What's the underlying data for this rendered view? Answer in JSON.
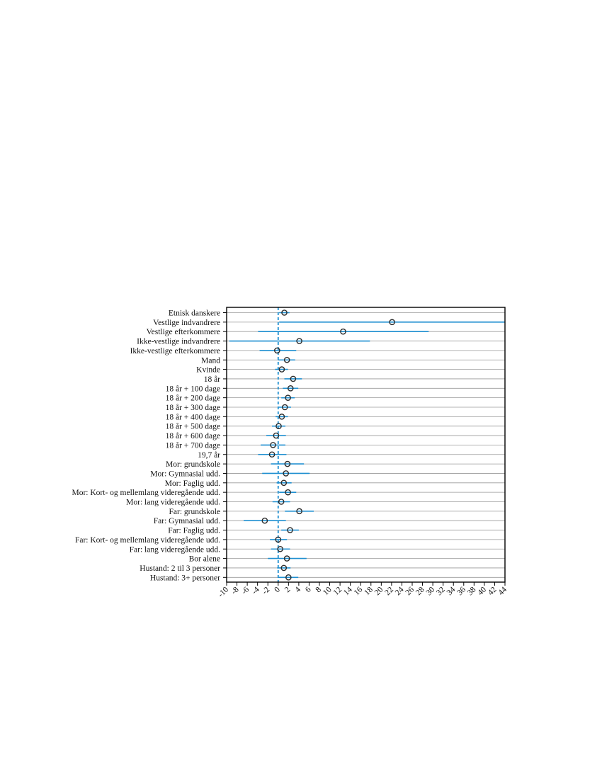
{
  "chart_data": {
    "type": "scatter",
    "variant": "coefficient-plot",
    "title": "",
    "xlabel": "",
    "ylabel": "",
    "xlim": [
      -10,
      44
    ],
    "x_ticks": [
      -10,
      -8,
      -6,
      -4,
      -2,
      0,
      2,
      4,
      6,
      8,
      10,
      12,
      14,
      16,
      18,
      20,
      22,
      24,
      26,
      28,
      30,
      32,
      34,
      36,
      38,
      40,
      42,
      44
    ],
    "reference_line": 0,
    "grid": "horizontal",
    "legend": "none",
    "colors": {
      "ci": "#1f8fd0",
      "marker": "#2b2b2b",
      "reference": "#1f8fd0",
      "grid": "#9a9a9a"
    },
    "points": [
      {
        "label": "Etnisk danskere",
        "estimate": 1.2,
        "ci_low": 0.2,
        "ci_high": 2.2
      },
      {
        "label": "Vestlige indvandrere",
        "estimate": 22.1,
        "ci_low": 0.2,
        "ci_high": 44.0
      },
      {
        "label": "Vestlige efterkommere",
        "estimate": 12.6,
        "ci_low": -3.9,
        "ci_high": 29.2
      },
      {
        "label": "Ikke-vestlige indvandrere",
        "estimate": 4.1,
        "ci_low": -9.5,
        "ci_high": 17.8
      },
      {
        "label": "Ikke-vestlige efterkommere",
        "estimate": -0.2,
        "ci_low": -3.6,
        "ci_high": 3.5
      },
      {
        "label": "Mand",
        "estimate": 1.7,
        "ci_low": 0.0,
        "ci_high": 3.3
      },
      {
        "label": "Kvinde",
        "estimate": 0.7,
        "ci_low": -0.6,
        "ci_high": 1.9
      },
      {
        "label": "18 år",
        "estimate": 2.9,
        "ci_low": 1.2,
        "ci_high": 4.6
      },
      {
        "label": "18 år + 100 dage",
        "estimate": 2.4,
        "ci_low": 0.9,
        "ci_high": 3.9
      },
      {
        "label": "18 år + 200 dage",
        "estimate": 1.9,
        "ci_low": 0.6,
        "ci_high": 3.2
      },
      {
        "label": "18 år + 300 dage",
        "estimate": 1.3,
        "ci_low": 0.1,
        "ci_high": 2.5
      },
      {
        "label": "18 år + 400 dage",
        "estimate": 0.7,
        "ci_low": -0.5,
        "ci_high": 1.9
      },
      {
        "label": "18 år + 500 dage",
        "estimate": 0.1,
        "ci_low": -1.2,
        "ci_high": 1.4
      },
      {
        "label": "18 år + 600 dage",
        "estimate": -0.4,
        "ci_low": -2.3,
        "ci_high": 1.5
      },
      {
        "label": "18 år + 700 dage",
        "estimate": -1.0,
        "ci_low": -3.4,
        "ci_high": 1.4
      },
      {
        "label": "19,7 år",
        "estimate": -1.2,
        "ci_low": -3.9,
        "ci_high": 1.6
      },
      {
        "label": "Mor: grundskole",
        "estimate": 1.8,
        "ci_low": -1.4,
        "ci_high": 5.0
      },
      {
        "label": "Mor: Gymnasial udd.",
        "estimate": 1.5,
        "ci_low": -3.1,
        "ci_high": 6.1
      },
      {
        "label": "Mor: Faglig udd.",
        "estimate": 1.1,
        "ci_low": -0.3,
        "ci_high": 2.6
      },
      {
        "label": "Mor: Kort- og mellemlang videregående udd.",
        "estimate": 1.9,
        "ci_low": 0.2,
        "ci_high": 3.5
      },
      {
        "label": "Mor: lang videregående udd.",
        "estimate": 0.6,
        "ci_low": -1.1,
        "ci_high": 2.3
      },
      {
        "label": "Far: grundskole",
        "estimate": 4.1,
        "ci_low": 1.3,
        "ci_high": 6.9
      },
      {
        "label": "Far: Gymnasial udd.",
        "estimate": -2.6,
        "ci_low": -6.7,
        "ci_high": 1.5
      },
      {
        "label": "Far: Faglig udd.",
        "estimate": 2.3,
        "ci_low": 0.6,
        "ci_high": 4.0
      },
      {
        "label": "Far: Kort- og mellemlang videregående udd.",
        "estimate": 0.0,
        "ci_low": -1.6,
        "ci_high": 1.7
      },
      {
        "label": "Far: lang videregående udd.",
        "estimate": 0.4,
        "ci_low": -1.4,
        "ci_high": 2.3
      },
      {
        "label": "Bor alene",
        "estimate": 1.7,
        "ci_low": -2.0,
        "ci_high": 5.5
      },
      {
        "label": "Hustand: 2 til 3 personer",
        "estimate": 1.1,
        "ci_low": -0.2,
        "ci_high": 2.4
      },
      {
        "label": "Hustand: 3+ personer",
        "estimate": 2.0,
        "ci_low": 0.1,
        "ci_high": 3.9
      }
    ]
  }
}
